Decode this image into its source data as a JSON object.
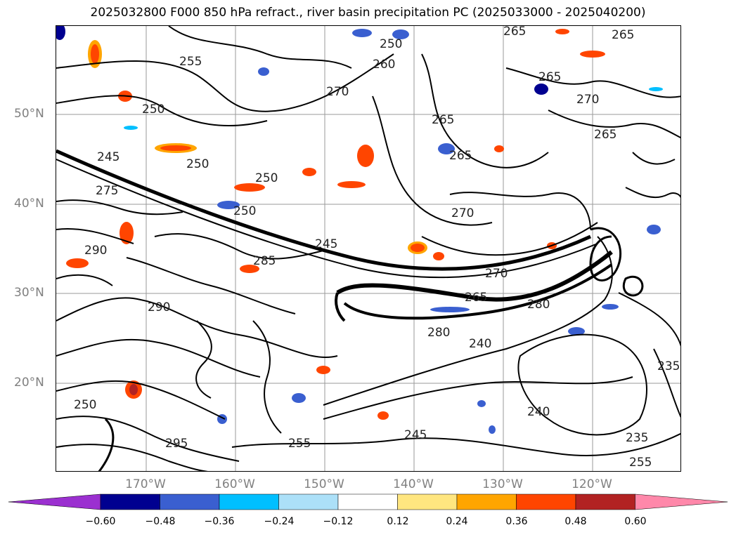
{
  "title": "2025032800 F000 850 hPa refract., river basin precipitation PC (2025033000 - 2025040200)",
  "lat_labels": [
    "50°N",
    "40°N",
    "30°N",
    "20°N"
  ],
  "lon_labels": [
    "170°W",
    "160°W",
    "150°W",
    "140°W",
    "130°W",
    "120°W"
  ],
  "contour_labels": [
    "265",
    "265",
    "250",
    "260",
    "270",
    "265",
    "255",
    "250",
    "270",
    "265",
    "265",
    "265",
    "245",
    "250",
    "250",
    "275",
    "270",
    "245",
    "250",
    "285",
    "270",
    "280",
    "265",
    "290",
    "240",
    "235",
    "240",
    "235",
    "250",
    "245",
    "255",
    "295",
    "290",
    "280",
    "255"
  ],
  "colorbar": {
    "ticks": [
      "−0.60",
      "−0.48",
      "−0.36",
      "−0.24",
      "−0.12",
      "0.12",
      "0.24",
      "0.36",
      "0.48",
      "0.60"
    ],
    "colors": [
      "#9b30d0",
      "#000090",
      "#3a5fd0",
      "#00bfff",
      "#ace0f8",
      "#ffffff",
      "#ffe680",
      "#ffa500",
      "#ff4500",
      "#b22222",
      "#ff88aa"
    ]
  }
}
